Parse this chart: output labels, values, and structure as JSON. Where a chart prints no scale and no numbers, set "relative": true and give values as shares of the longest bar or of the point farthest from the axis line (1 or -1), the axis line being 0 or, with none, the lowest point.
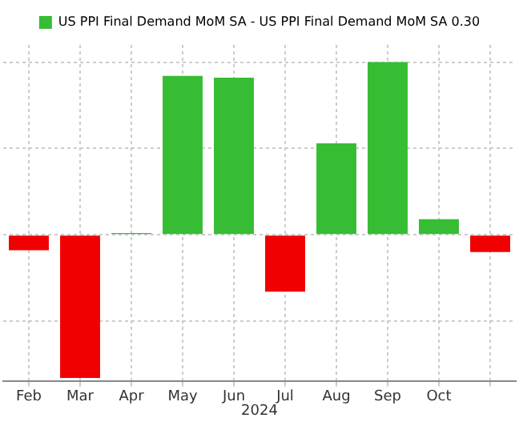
{
  "chart_data": {
    "type": "bar",
    "relative": true,
    "categories": [
      "Feb",
      "Mar",
      "Apr",
      "May",
      "Jun",
      "Jul",
      "Aug",
      "Sep",
      "Oct",
      null
    ],
    "series": [
      {
        "name": "US PPI Final Demand MoM SA - US PPI Final Demand MoM SA 0.30",
        "color": "#36bd34",
        "colors": [
          "#f00000",
          "#f00000",
          "#36bd34",
          "#36bd34",
          "#36bd34",
          "#f00000",
          "#36bd34",
          "#36bd34",
          "#36bd34",
          "#f00000"
        ],
        "values": [
          -0.09,
          -0.83,
          0.01,
          0.92,
          0.91,
          -0.33,
          0.53,
          1,
          0.09,
          -0.1
        ]
      }
    ],
    "annotations": [
      "2024"
    ],
    "grid": true,
    "legend": "top"
  }
}
